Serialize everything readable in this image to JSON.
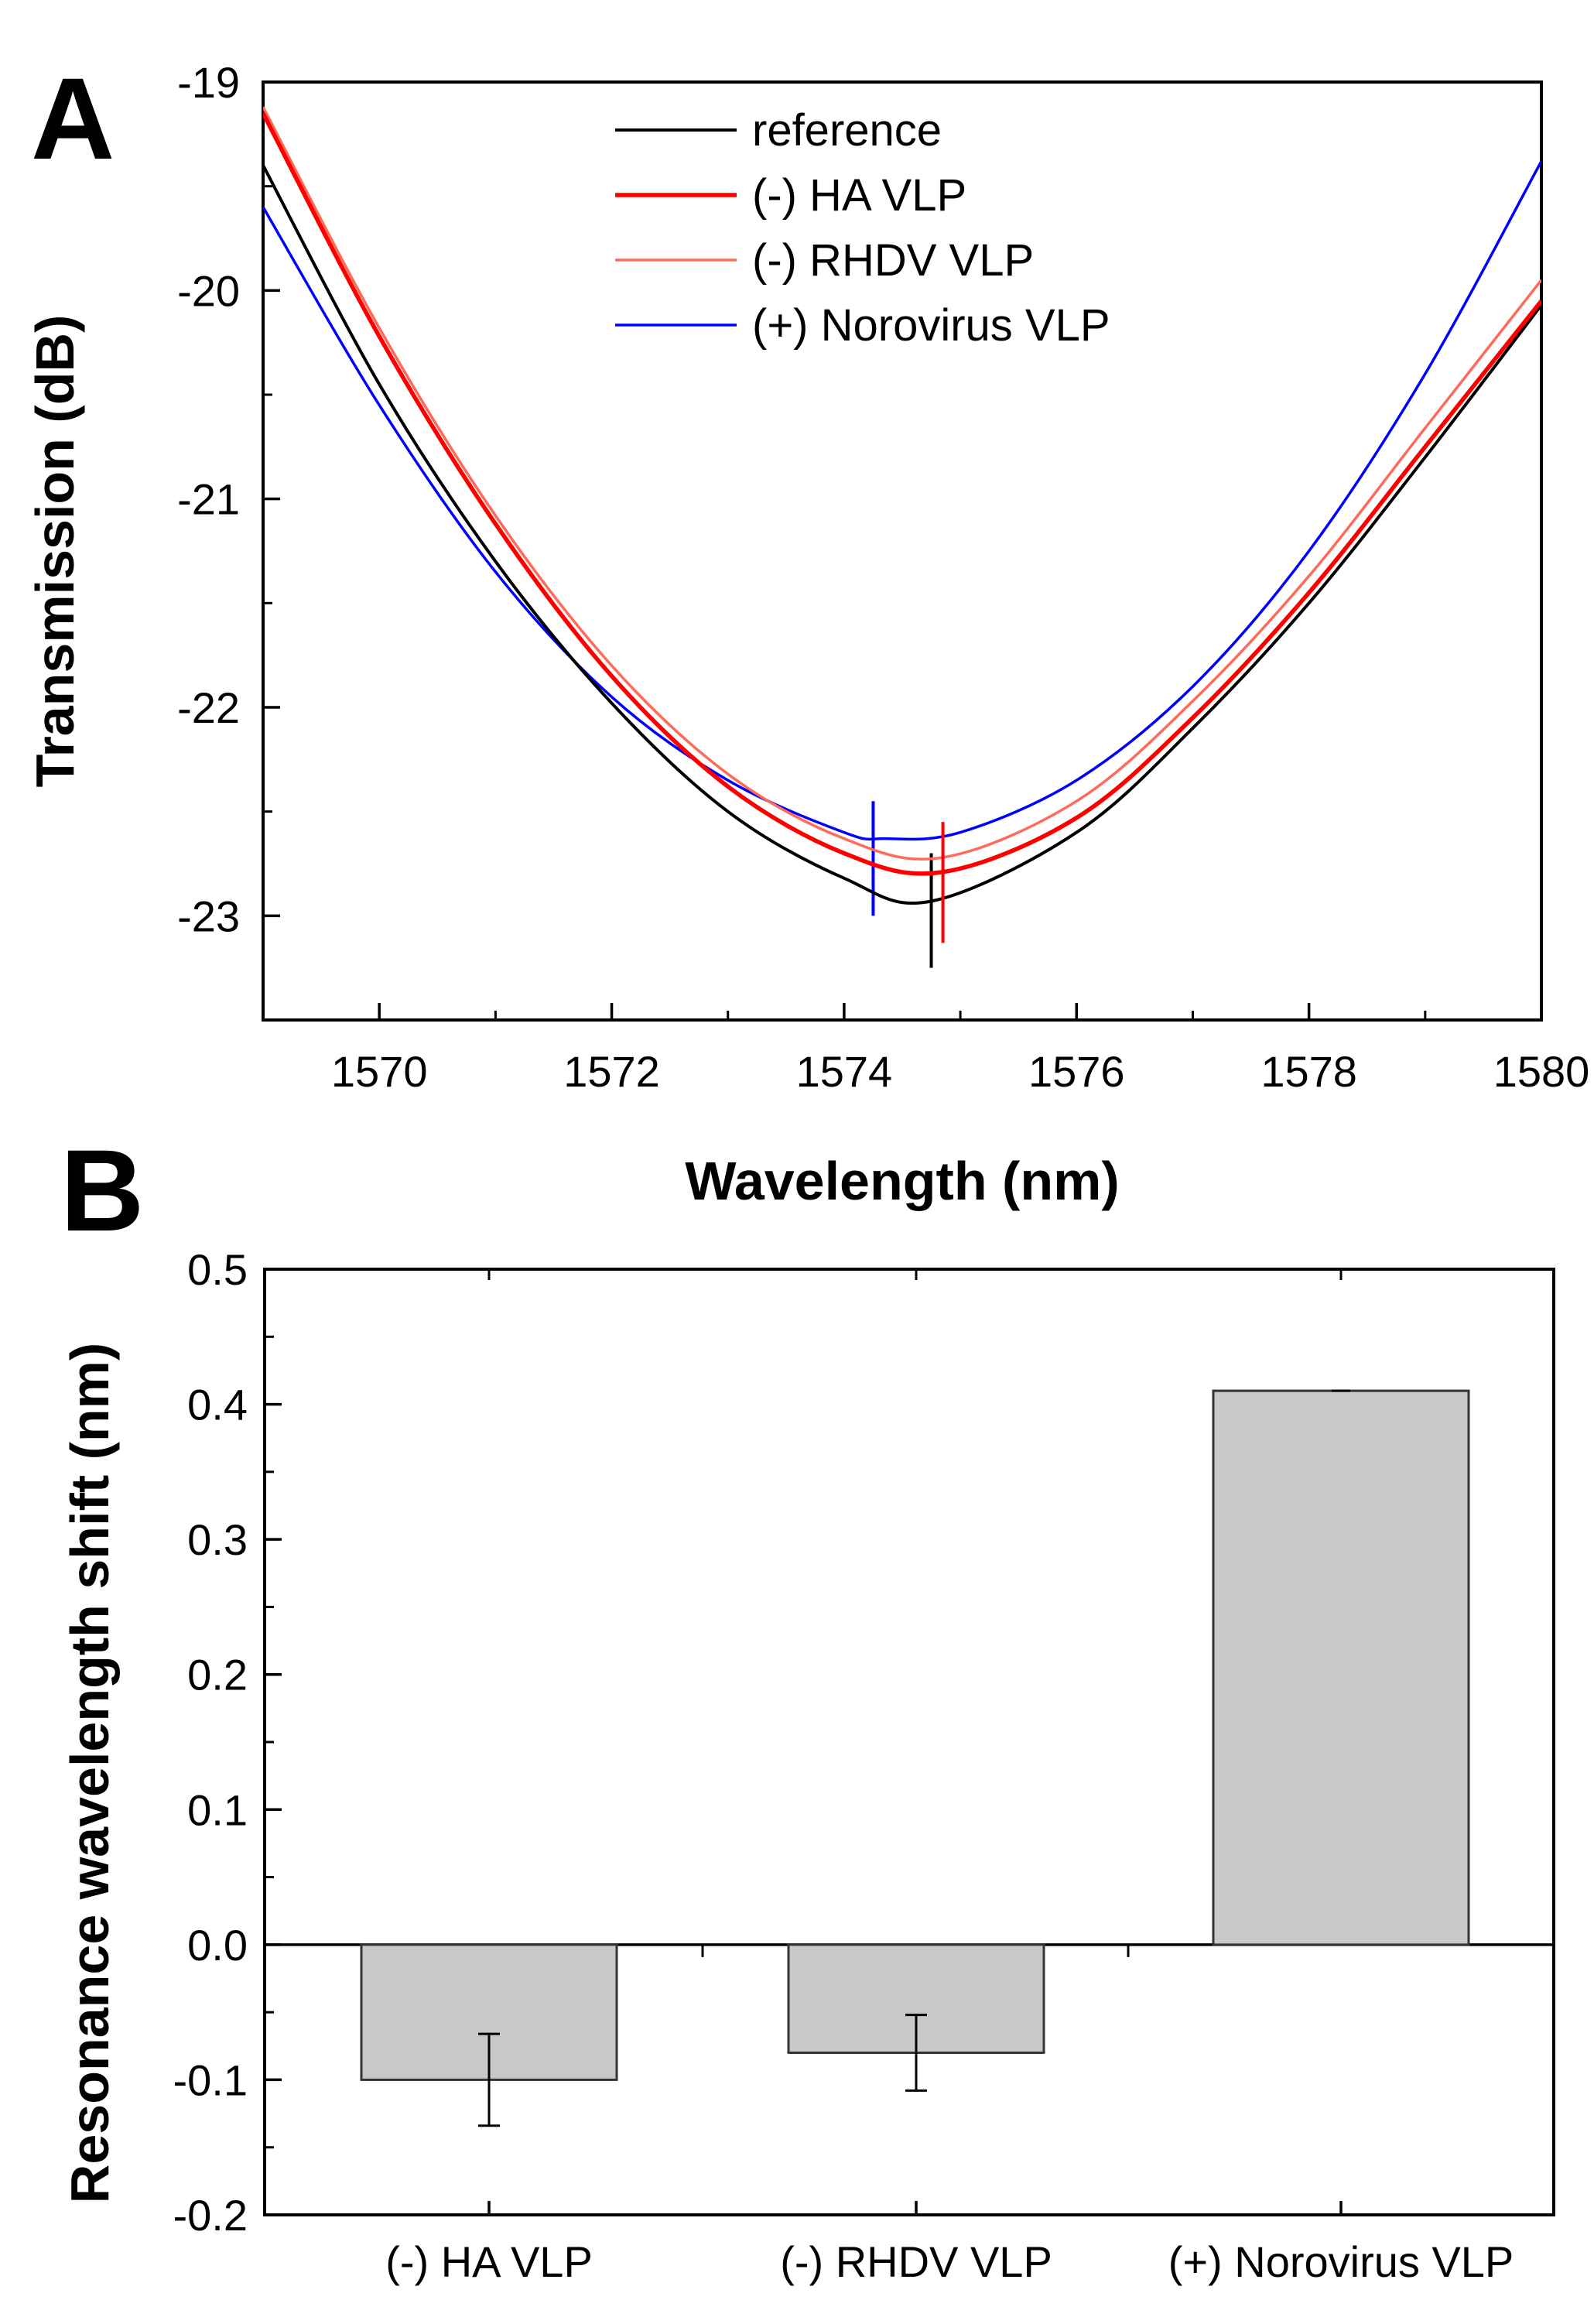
{
  "chart_data": [
    {
      "panel": "A",
      "type": "line",
      "title": "",
      "xlabel": "Wavelength (nm)",
      "ylabel": "Transmission (dB)",
      "xlim": [
        1569,
        1580
      ],
      "ylim": [
        -23.5,
        -19
      ],
      "xticks": [
        1570,
        1572,
        1574,
        1576,
        1578,
        1580
      ],
      "xtick_labels": [
        "1570",
        "1572",
        "1574",
        "1576",
        "1578",
        "1580"
      ],
      "yticks": [
        -23,
        -22,
        -21,
        -20,
        -19
      ],
      "ytick_labels": [
        "-23",
        "-22",
        "-21",
        "-20",
        "-19"
      ],
      "grid": false,
      "legend": "top-center",
      "series": [
        {
          "name": "reference",
          "color": "#000000",
          "x": [
            1569,
            1570,
            1571,
            1572,
            1573,
            1574,
            1574.75,
            1576,
            1577,
            1578,
            1579,
            1580
          ],
          "y": [
            -19.4,
            -20.45,
            -21.3,
            -21.98,
            -22.5,
            -22.82,
            -22.93,
            -22.6,
            -22.1,
            -21.5,
            -20.8,
            -20.07
          ],
          "marker_x": 1574.75,
          "marker_range": [
            -23.25,
            -22.7
          ]
        },
        {
          "name": "(-) HA VLP",
          "color": "#ff0000",
          "x": [
            1569,
            1570,
            1571,
            1572,
            1573,
            1574,
            1574.85,
            1576,
            1577,
            1578,
            1579,
            1580
          ],
          "y": [
            -19.15,
            -20.22,
            -21.12,
            -21.85,
            -22.38,
            -22.7,
            -22.79,
            -22.53,
            -22.05,
            -21.45,
            -20.75,
            -20.05
          ],
          "marker_x": 1574.85,
          "marker_range": [
            -23.13,
            -22.55
          ]
        },
        {
          "name": "(-) RHDV VLP",
          "color": "#ff6b5a",
          "x": [
            1569,
            1570,
            1571,
            1572,
            1573,
            1574,
            1574.85,
            1576,
            1577,
            1578,
            1579,
            1580
          ],
          "y": [
            -19.12,
            -20.18,
            -21.08,
            -21.8,
            -22.32,
            -22.63,
            -22.72,
            -22.45,
            -21.97,
            -21.37,
            -20.66,
            -19.95
          ]
        },
        {
          "name": "(+) Norovirus VLP",
          "color": "#0000ff",
          "x": [
            1569,
            1570,
            1571,
            1572,
            1573,
            1574,
            1574.35,
            1575,
            1576,
            1577,
            1578,
            1579,
            1580
          ],
          "y": [
            -19.6,
            -20.55,
            -21.35,
            -21.95,
            -22.35,
            -22.6,
            -22.63,
            -22.6,
            -22.35,
            -21.9,
            -21.25,
            -20.4,
            -19.38
          ],
          "marker_x": 1574.25,
          "marker_range": [
            -23.0,
            -22.45
          ]
        }
      ]
    },
    {
      "panel": "B",
      "type": "bar",
      "title": "",
      "xlabel": "",
      "ylabel": "Resonance wavelength shift (nm)",
      "ylim": [
        -0.2,
        0.5
      ],
      "yticks": [
        -0.2,
        -0.1,
        0.0,
        0.1,
        0.2,
        0.3,
        0.4,
        0.5
      ],
      "ytick_labels": [
        "-0.2",
        "-0.1",
        "0.0",
        "0.1",
        "0.2",
        "0.3",
        "0.4",
        "0.5"
      ],
      "grid": false,
      "categories": [
        "(-) HA VLP",
        "(-) RHDV VLP",
        "(+) Norovirus VLP"
      ],
      "values": [
        -0.1,
        -0.08,
        0.41
      ],
      "errors": [
        0.034,
        0.028,
        0.0
      ],
      "bar_color": "#c8c8c8"
    }
  ]
}
